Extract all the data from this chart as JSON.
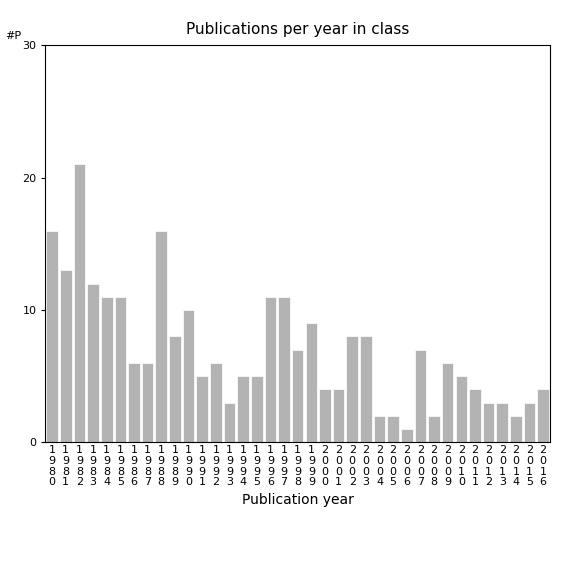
{
  "years": [
    "1980",
    "1981",
    "1982",
    "1983",
    "1984",
    "1985",
    "1986",
    "1987",
    "1988",
    "1989",
    "1990",
    "1991",
    "1992",
    "1993",
    "1994",
    "1995",
    "1996",
    "1997",
    "1998",
    "1999",
    "2000",
    "2001",
    "2002",
    "2003",
    "2004",
    "2005",
    "2006",
    "2007",
    "2008",
    "2009",
    "2010",
    "2011",
    "2012",
    "2013",
    "2014",
    "2015",
    "2016"
  ],
  "values": [
    16,
    13,
    21,
    12,
    11,
    11,
    6,
    6,
    16,
    8,
    10,
    5,
    6,
    3,
    5,
    5,
    11,
    11,
    7,
    9,
    4,
    4,
    8,
    8,
    2,
    2,
    1,
    7,
    2,
    6,
    5,
    4,
    3,
    3,
    2,
    3,
    4
  ],
  "bar_color": "#b3b3b3",
  "title": "Publications per year in class",
  "xlabel": "Publication year",
  "ylabel": "#P",
  "ylim": [
    0,
    30
  ],
  "yticks": [
    0,
    10,
    20,
    30
  ],
  "bg_color": "#ffffff",
  "tick_label_fontsize": 8,
  "xlabel_fontsize": 10,
  "title_fontsize": 11
}
